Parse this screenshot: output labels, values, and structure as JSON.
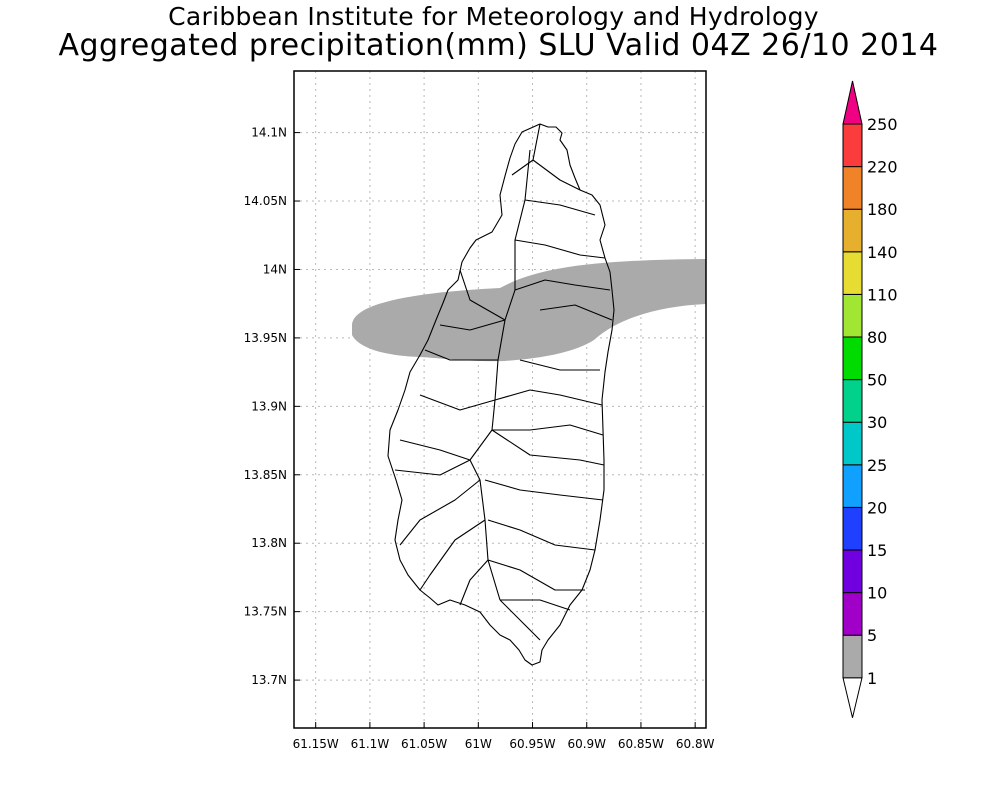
{
  "title": "Caribbean Institute for Meteorology and Hydrology",
  "subtitle": "Aggregated precipitation(mm) SLU Valid 04Z 26/10 2014",
  "map": {
    "region": "Saint Lucia",
    "lon_range": [
      -61.17,
      -60.79
    ],
    "lat_range": [
      13.665,
      14.145
    ],
    "grid": true,
    "lon_ticks": [
      {
        "value": -61.15,
        "label": "61.15W"
      },
      {
        "value": -61.1,
        "label": "61.1W"
      },
      {
        "value": -61.05,
        "label": "61.05W"
      },
      {
        "value": -61.0,
        "label": "61W"
      },
      {
        "value": -60.95,
        "label": "60.95W"
      },
      {
        "value": -60.9,
        "label": "60.9W"
      },
      {
        "value": -60.85,
        "label": "60.85W"
      },
      {
        "value": -60.8,
        "label": "60.8W"
      }
    ],
    "lat_ticks": [
      {
        "value": 14.1,
        "label": "14.1N"
      },
      {
        "value": 14.05,
        "label": "14.05N"
      },
      {
        "value": 14.0,
        "label": "14N"
      },
      {
        "value": 13.95,
        "label": "13.95N"
      },
      {
        "value": 13.9,
        "label": "13.9N"
      },
      {
        "value": 13.85,
        "label": "13.85N"
      },
      {
        "value": 13.8,
        "label": "13.8N"
      },
      {
        "value": 13.75,
        "label": "13.75N"
      },
      {
        "value": 13.7,
        "label": "13.7N"
      }
    ],
    "precip_band": {
      "range_mm": "1-5",
      "color": "#aaaaaa"
    }
  },
  "colorbar": {
    "labels": [
      "1",
      "5",
      "10",
      "15",
      "20",
      "25",
      "30",
      "50",
      "80",
      "110",
      "140",
      "180",
      "220",
      "250"
    ],
    "colors": [
      "#ffffff",
      "#aaaaaa",
      "#a000c8",
      "#7000e0",
      "#2040ff",
      "#10a0ff",
      "#00c8c8",
      "#00d28c",
      "#00dc00",
      "#a0e632",
      "#e6dc32",
      "#e6af2d",
      "#f08228",
      "#fa3c3c",
      "#f00082"
    ]
  }
}
